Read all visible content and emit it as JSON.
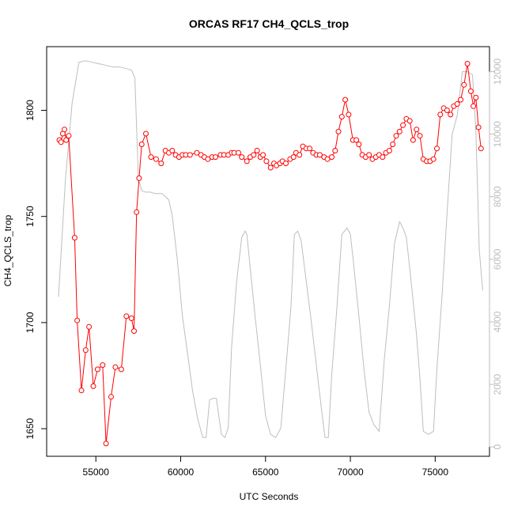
{
  "chart_data": {
    "type": "line",
    "title": "ORCAS RF17 CH4_QCLS_trop",
    "xlabel": "UTC Seconds",
    "ylabel": "CH4_QCLS_trop",
    "xlim": [
      52100,
      78200
    ],
    "ylim": [
      1637,
      1830
    ],
    "y2lim": [
      -300,
      12800
    ],
    "x_ticks": [
      55000,
      60000,
      65000,
      70000,
      75000
    ],
    "x_tick_labels": [
      "55000",
      "60000",
      "65000",
      "70000",
      "75000"
    ],
    "y_ticks": [
      1650,
      1700,
      1750,
      1800
    ],
    "y_tick_labels": [
      "1650",
      "1700",
      "1750",
      "1800"
    ],
    "y2_ticks": [
      0,
      2000,
      4000,
      6000,
      8000,
      10000,
      12000
    ],
    "y2_tick_labels": [
      "0",
      "2000",
      "4000",
      "6000",
      "8000",
      "10000",
      "12000"
    ],
    "colors": {
      "ch4": "#ff0000",
      "altitude": "#bebebe",
      "axis": "#000000",
      "right_axis": "#bebebe"
    },
    "grid": false,
    "series": [
      {
        "role": "ch4",
        "axis": "left",
        "style": "points-lines",
        "x": [
          52850,
          52950,
          53050,
          53150,
          53250,
          53400,
          53750,
          53900,
          54150,
          54400,
          54600,
          54850,
          55100,
          55400,
          55600,
          55900,
          56150,
          56500,
          56800,
          57100,
          57250,
          57400,
          57550,
          57700,
          57950,
          58250,
          58550,
          58850,
          59100,
          59300,
          59500,
          59700,
          59900,
          60100,
          60300,
          60550,
          60950,
          61200,
          61400,
          61600,
          61850,
          62050,
          62350,
          62550,
          62800,
          63000,
          63150,
          63400,
          63600,
          63900,
          64100,
          64300,
          64500,
          64700,
          64850,
          65050,
          65300,
          65500,
          65650,
          65850,
          66000,
          66200,
          66450,
          66650,
          66800,
          67000,
          67200,
          67400,
          67600,
          67800,
          68000,
          68200,
          68450,
          68650,
          68900,
          69100,
          69300,
          69500,
          69700,
          69900,
          70150,
          70350,
          70500,
          70700,
          70900,
          71100,
          71300,
          71500,
          71700,
          71900,
          72100,
          72300,
          72500,
          72700,
          72900,
          73100,
          73300,
          73500,
          73700,
          73900,
          74100,
          74300,
          74500,
          74700,
          74900,
          75100,
          75300,
          75500,
          75700,
          75900,
          76100,
          76300,
          76500,
          76700,
          76900,
          77100,
          77250,
          77400,
          77550,
          77700
        ],
        "y": [
          1786,
          1785,
          1789,
          1791,
          1786,
          1788,
          1740,
          1701,
          1668,
          1687,
          1698,
          1670,
          1678,
          1680,
          1643,
          1665,
          1679,
          1678,
          1703,
          1702,
          1696,
          1752,
          1768,
          1784,
          1789,
          1778,
          1777,
          1775,
          1781,
          1780,
          1781,
          1779,
          1778,
          1779,
          1779,
          1779,
          1780,
          1779,
          1778,
          1777,
          1778,
          1778,
          1779,
          1779,
          1779,
          1780,
          1780,
          1780,
          1778,
          1776,
          1778,
          1779,
          1781,
          1778,
          1779,
          1776,
          1773,
          1775,
          1774,
          1775,
          1776,
          1775,
          1777,
          1778,
          1780,
          1779,
          1783,
          1782,
          1782,
          1780,
          1779,
          1779,
          1778,
          1777,
          1778,
          1781,
          1790,
          1797,
          1805,
          1798,
          1786,
          1786,
          1784,
          1779,
          1778,
          1779,
          1777,
          1778,
          1779,
          1778,
          1780,
          1781,
          1784,
          1788,
          1790,
          1793,
          1796,
          1795,
          1786,
          1791,
          1788,
          1777,
          1776,
          1776,
          1777,
          1782,
          1798,
          1801,
          1800,
          1798,
          1802,
          1803,
          1805,
          1812,
          1822,
          1809,
          1802,
          1806,
          1792,
          1782
        ]
      },
      {
        "role": "altitude",
        "axis": "right",
        "style": "line",
        "x": [
          52800,
          53200,
          53600,
          54000,
          54400,
          54800,
          55200,
          55600,
          56000,
          56400,
          56800,
          57100,
          57300,
          57500,
          57700,
          57900,
          58200,
          58500,
          58900,
          59100,
          59300,
          59500,
          59800,
          60100,
          60400,
          60700,
          61000,
          61300,
          61500,
          61700,
          61900,
          62100,
          62400,
          62600,
          62800,
          63000,
          63300,
          63600,
          63800,
          63900,
          64100,
          64400,
          64700,
          65000,
          65300,
          65600,
          65900,
          66200,
          66500,
          66700,
          66900,
          67100,
          67400,
          67700,
          68000,
          68300,
          68500,
          68700,
          68900,
          69200,
          69500,
          69800,
          70000,
          70200,
          70500,
          70800,
          71100,
          71400,
          71700,
          72000,
          72300,
          72600,
          72900,
          73100,
          73300,
          73600,
          73900,
          74100,
          74300,
          74600,
          74900,
          75100,
          75400,
          75700,
          76000,
          76300,
          76600,
          76900,
          77200,
          77400,
          77600,
          77800
        ],
        "y": [
          4800,
          8500,
          11000,
          12300,
          12350,
          12300,
          12250,
          12200,
          12150,
          12150,
          12100,
          12050,
          11800,
          8600,
          8200,
          8150,
          8150,
          8100,
          8100,
          8000,
          7900,
          7400,
          6000,
          4200,
          3000,
          1800,
          900,
          300,
          300,
          1500,
          1550,
          1550,
          400,
          300,
          600,
          3200,
          5300,
          6700,
          6900,
          6800,
          5700,
          4100,
          2600,
          1000,
          400,
          300,
          600,
          2500,
          4500,
          6800,
          6900,
          6600,
          5300,
          4000,
          2600,
          1200,
          300,
          300,
          2300,
          4400,
          6800,
          7000,
          6800,
          5800,
          4200,
          2500,
          1100,
          700,
          500,
          2800,
          4500,
          6500,
          7200,
          7000,
          6700,
          5200,
          3600,
          2200,
          500,
          400,
          500,
          2500,
          4800,
          7500,
          10000,
          10600,
          12000,
          12000,
          11900,
          10100,
          6300,
          5000
        ]
      }
    ]
  }
}
